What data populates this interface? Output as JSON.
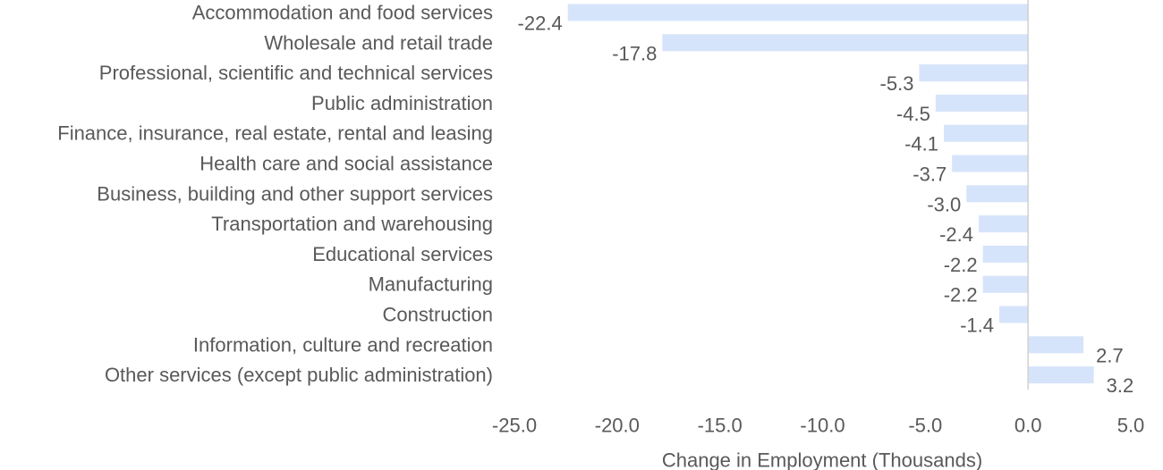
{
  "chart_data": {
    "type": "bar",
    "orientation": "horizontal",
    "title": "",
    "xlabel": "Change in Employment (Thousands)",
    "ylabel": "",
    "xlim": [
      -25.0,
      5.0
    ],
    "xticks": [
      "-25.0",
      "-20.0",
      "-15.0",
      "-10.0",
      "-5.0",
      "0.0",
      "5.0"
    ],
    "grid": false,
    "legend": "none",
    "bar_color": "#d6e4fb",
    "zero_line_color": "#d0d0d0",
    "categories": [
      "Accommodation and food services",
      "Wholesale and retail trade",
      "Professional, scientific and technical services",
      "Public administration",
      "Finance, insurance, real estate, rental and leasing",
      "Health care and social assistance",
      "Business, building and other support services",
      "Transportation and warehousing",
      "Educational services",
      "Manufacturing",
      "Construction",
      "Information, culture and recreation",
      "Other services (except public administration)"
    ],
    "values": [
      -22.4,
      -17.8,
      -5.3,
      -4.5,
      -4.1,
      -3.7,
      -3.0,
      -2.4,
      -2.2,
      -2.2,
      -1.4,
      2.7,
      3.2
    ],
    "data_labels": [
      "-22.4",
      "-17.8",
      "-5.3",
      "-4.5",
      "-4.1",
      "-3.7",
      "-3.0",
      "-2.4",
      "-2.2",
      "-2.2",
      "-1.4",
      "2.7",
      "3.2"
    ]
  }
}
